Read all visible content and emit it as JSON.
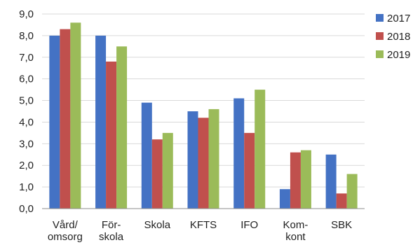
{
  "chart_data": {
    "type": "bar",
    "categories": [
      [
        "Vård/",
        "omsorg"
      ],
      [
        "För-",
        "skola"
      ],
      [
        "Skola"
      ],
      [
        "KFTS"
      ],
      [
        "IFO"
      ],
      [
        "Kom-",
        "kont"
      ],
      [
        "SBK"
      ]
    ],
    "series": [
      {
        "name": "2017",
        "color": "#4472C4",
        "values": [
          8.0,
          8.0,
          4.9,
          4.5,
          5.1,
          0.9,
          2.5
        ]
      },
      {
        "name": "2018",
        "color": "#C0504D",
        "values": [
          8.3,
          6.8,
          3.2,
          4.2,
          3.5,
          2.6,
          0.7
        ]
      },
      {
        "name": "2019",
        "color": "#9BBB59",
        "values": [
          8.6,
          7.5,
          3.5,
          4.6,
          5.5,
          2.7,
          1.6
        ]
      }
    ],
    "yticks": [
      "0,0",
      "1,0",
      "2,0",
      "3,0",
      "4,0",
      "5,0",
      "6,0",
      "7,0",
      "8,0",
      "9,0"
    ],
    "ylim": [
      0,
      9
    ],
    "grid": true,
    "legend": "right",
    "title": "",
    "xlabel": "",
    "ylabel": ""
  }
}
